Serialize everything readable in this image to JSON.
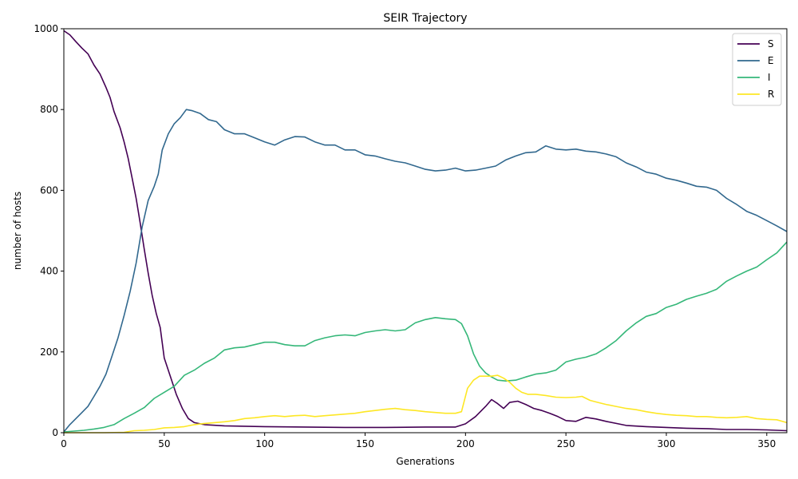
{
  "chart_data": {
    "type": "line",
    "title": "SEIR Trajectory",
    "xlabel": "Generations",
    "ylabel": "number of hosts",
    "xlim": [
      0,
      360
    ],
    "ylim": [
      0,
      1000
    ],
    "xticks": [
      0,
      50,
      100,
      150,
      200,
      250,
      300,
      350
    ],
    "yticks": [
      0,
      200,
      400,
      600,
      800,
      1000
    ],
    "grid": false,
    "legend_position": "top-right",
    "series": [
      {
        "name": "S",
        "color": "#440154",
        "points": [
          [
            0,
            995
          ],
          [
            3,
            985
          ],
          [
            6,
            968
          ],
          [
            9,
            952
          ],
          [
            12,
            938
          ],
          [
            15,
            910
          ],
          [
            18,
            888
          ],
          [
            21,
            855
          ],
          [
            23,
            830
          ],
          [
            25,
            795
          ],
          [
            28,
            755
          ],
          [
            30,
            720
          ],
          [
            32,
            680
          ],
          [
            34,
            630
          ],
          [
            36,
            580
          ],
          [
            38,
            520
          ],
          [
            40,
            455
          ],
          [
            42,
            395
          ],
          [
            44,
            340
          ],
          [
            46,
            295
          ],
          [
            48,
            260
          ],
          [
            50,
            185
          ],
          [
            53,
            140
          ],
          [
            56,
            95
          ],
          [
            59,
            60
          ],
          [
            62,
            35
          ],
          [
            65,
            25
          ],
          [
            70,
            20
          ],
          [
            80,
            17
          ],
          [
            100,
            15
          ],
          [
            120,
            14
          ],
          [
            140,
            13
          ],
          [
            160,
            13
          ],
          [
            180,
            14
          ],
          [
            195,
            14
          ],
          [
            200,
            22
          ],
          [
            205,
            40
          ],
          [
            210,
            65
          ],
          [
            213,
            82
          ],
          [
            216,
            72
          ],
          [
            219,
            60
          ],
          [
            222,
            75
          ],
          [
            226,
            78
          ],
          [
            230,
            70
          ],
          [
            234,
            60
          ],
          [
            238,
            55
          ],
          [
            242,
            48
          ],
          [
            246,
            40
          ],
          [
            250,
            30
          ],
          [
            255,
            28
          ],
          [
            260,
            38
          ],
          [
            265,
            34
          ],
          [
            270,
            28
          ],
          [
            280,
            18
          ],
          [
            290,
            15
          ],
          [
            300,
            13
          ],
          [
            310,
            11
          ],
          [
            320,
            10
          ],
          [
            330,
            8
          ],
          [
            340,
            8
          ],
          [
            350,
            7
          ],
          [
            360,
            5
          ]
        ]
      },
      {
        "name": "E",
        "color": "#31688e",
        "points": [
          [
            0,
            2
          ],
          [
            3,
            20
          ],
          [
            6,
            35
          ],
          [
            9,
            50
          ],
          [
            12,
            65
          ],
          [
            15,
            90
          ],
          [
            18,
            115
          ],
          [
            21,
            145
          ],
          [
            24,
            190
          ],
          [
            27,
            235
          ],
          [
            30,
            290
          ],
          [
            33,
            350
          ],
          [
            36,
            420
          ],
          [
            39,
            510
          ],
          [
            42,
            575
          ],
          [
            45,
            610
          ],
          [
            47,
            640
          ],
          [
            49,
            700
          ],
          [
            52,
            740
          ],
          [
            55,
            765
          ],
          [
            58,
            780
          ],
          [
            61,
            800
          ],
          [
            64,
            797
          ],
          [
            68,
            790
          ],
          [
            72,
            775
          ],
          [
            76,
            770
          ],
          [
            80,
            750
          ],
          [
            85,
            740
          ],
          [
            90,
            740
          ],
          [
            95,
            730
          ],
          [
            100,
            720
          ],
          [
            105,
            712
          ],
          [
            110,
            725
          ],
          [
            115,
            733
          ],
          [
            120,
            732
          ],
          [
            125,
            720
          ],
          [
            130,
            712
          ],
          [
            135,
            712
          ],
          [
            140,
            700
          ],
          [
            145,
            700
          ],
          [
            150,
            688
          ],
          [
            155,
            685
          ],
          [
            160,
            678
          ],
          [
            165,
            672
          ],
          [
            170,
            668
          ],
          [
            175,
            660
          ],
          [
            180,
            652
          ],
          [
            185,
            648
          ],
          [
            190,
            650
          ],
          [
            195,
            655
          ],
          [
            200,
            648
          ],
          [
            205,
            650
          ],
          [
            210,
            655
          ],
          [
            215,
            660
          ],
          [
            220,
            675
          ],
          [
            225,
            685
          ],
          [
            230,
            693
          ],
          [
            235,
            695
          ],
          [
            240,
            710
          ],
          [
            245,
            702
          ],
          [
            250,
            700
          ],
          [
            255,
            702
          ],
          [
            260,
            697
          ],
          [
            265,
            695
          ],
          [
            270,
            690
          ],
          [
            275,
            683
          ],
          [
            280,
            668
          ],
          [
            285,
            658
          ],
          [
            290,
            645
          ],
          [
            295,
            640
          ],
          [
            300,
            630
          ],
          [
            305,
            625
          ],
          [
            310,
            618
          ],
          [
            315,
            610
          ],
          [
            320,
            608
          ],
          [
            325,
            600
          ],
          [
            330,
            580
          ],
          [
            335,
            565
          ],
          [
            340,
            548
          ],
          [
            345,
            538
          ],
          [
            350,
            525
          ],
          [
            355,
            512
          ],
          [
            360,
            498
          ]
        ]
      },
      {
        "name": "I",
        "color": "#35b779",
        "points": [
          [
            0,
            2
          ],
          [
            5,
            4
          ],
          [
            10,
            6
          ],
          [
            15,
            9
          ],
          [
            20,
            13
          ],
          [
            25,
            20
          ],
          [
            30,
            35
          ],
          [
            35,
            48
          ],
          [
            40,
            62
          ],
          [
            45,
            85
          ],
          [
            50,
            100
          ],
          [
            55,
            115
          ],
          [
            60,
            142
          ],
          [
            65,
            155
          ],
          [
            70,
            172
          ],
          [
            75,
            185
          ],
          [
            80,
            205
          ],
          [
            85,
            210
          ],
          [
            90,
            212
          ],
          [
            95,
            218
          ],
          [
            100,
            224
          ],
          [
            105,
            224
          ],
          [
            110,
            218
          ],
          [
            115,
            215
          ],
          [
            120,
            215
          ],
          [
            125,
            228
          ],
          [
            130,
            235
          ],
          [
            135,
            240
          ],
          [
            140,
            242
          ],
          [
            145,
            240
          ],
          [
            150,
            248
          ],
          [
            155,
            252
          ],
          [
            160,
            255
          ],
          [
            165,
            252
          ],
          [
            170,
            255
          ],
          [
            175,
            272
          ],
          [
            180,
            280
          ],
          [
            185,
            285
          ],
          [
            190,
            282
          ],
          [
            195,
            280
          ],
          [
            198,
            270
          ],
          [
            201,
            240
          ],
          [
            204,
            195
          ],
          [
            207,
            165
          ],
          [
            210,
            148
          ],
          [
            213,
            138
          ],
          [
            216,
            130
          ],
          [
            220,
            128
          ],
          [
            225,
            130
          ],
          [
            230,
            138
          ],
          [
            235,
            145
          ],
          [
            240,
            148
          ],
          [
            245,
            155
          ],
          [
            250,
            175
          ],
          [
            255,
            182
          ],
          [
            260,
            187
          ],
          [
            265,
            195
          ],
          [
            270,
            210
          ],
          [
            275,
            228
          ],
          [
            280,
            252
          ],
          [
            285,
            272
          ],
          [
            290,
            288
          ],
          [
            295,
            295
          ],
          [
            300,
            310
          ],
          [
            305,
            318
          ],
          [
            310,
            330
          ],
          [
            315,
            338
          ],
          [
            320,
            345
          ],
          [
            325,
            355
          ],
          [
            330,
            375
          ],
          [
            335,
            388
          ],
          [
            340,
            400
          ],
          [
            345,
            410
          ],
          [
            350,
            428
          ],
          [
            355,
            445
          ],
          [
            360,
            472
          ]
        ]
      },
      {
        "name": "R",
        "color": "#fde725",
        "points": [
          [
            0,
            0
          ],
          [
            20,
            0
          ],
          [
            30,
            1
          ],
          [
            35,
            5
          ],
          [
            40,
            6
          ],
          [
            45,
            8
          ],
          [
            50,
            12
          ],
          [
            55,
            13
          ],
          [
            60,
            15
          ],
          [
            65,
            20
          ],
          [
            70,
            23
          ],
          [
            75,
            25
          ],
          [
            80,
            27
          ],
          [
            85,
            30
          ],
          [
            90,
            35
          ],
          [
            95,
            37
          ],
          [
            100,
            40
          ],
          [
            105,
            42
          ],
          [
            110,
            40
          ],
          [
            115,
            42
          ],
          [
            120,
            43
          ],
          [
            125,
            40
          ],
          [
            130,
            42
          ],
          [
            135,
            44
          ],
          [
            140,
            46
          ],
          [
            145,
            48
          ],
          [
            150,
            52
          ],
          [
            155,
            55
          ],
          [
            160,
            58
          ],
          [
            165,
            60
          ],
          [
            170,
            57
          ],
          [
            175,
            55
          ],
          [
            180,
            52
          ],
          [
            185,
            50
          ],
          [
            190,
            48
          ],
          [
            195,
            48
          ],
          [
            198,
            52
          ],
          [
            201,
            110
          ],
          [
            204,
            130
          ],
          [
            207,
            140
          ],
          [
            210,
            140
          ],
          [
            213,
            140
          ],
          [
            216,
            142
          ],
          [
            219,
            135
          ],
          [
            222,
            125
          ],
          [
            225,
            110
          ],
          [
            228,
            100
          ],
          [
            231,
            95
          ],
          [
            235,
            95
          ],
          [
            240,
            92
          ],
          [
            245,
            88
          ],
          [
            250,
            87
          ],
          [
            255,
            88
          ],
          [
            258,
            90
          ],
          [
            262,
            80
          ],
          [
            266,
            75
          ],
          [
            270,
            70
          ],
          [
            275,
            65
          ],
          [
            280,
            60
          ],
          [
            285,
            57
          ],
          [
            290,
            52
          ],
          [
            295,
            48
          ],
          [
            300,
            45
          ],
          [
            305,
            43
          ],
          [
            310,
            42
          ],
          [
            315,
            40
          ],
          [
            320,
            40
          ],
          [
            325,
            38
          ],
          [
            330,
            37
          ],
          [
            335,
            38
          ],
          [
            340,
            40
          ],
          [
            345,
            35
          ],
          [
            350,
            33
          ],
          [
            355,
            32
          ],
          [
            360,
            25
          ]
        ]
      }
    ]
  }
}
